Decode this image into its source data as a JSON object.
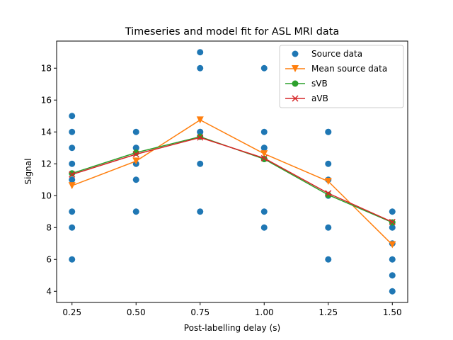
{
  "chart_data": {
    "type": "line",
    "title": "Timeseries and model fit for ASL MRI data",
    "xlabel": "Post-labelling delay (s)",
    "ylabel": "Signal",
    "xlim": [
      0.19,
      1.56
    ],
    "ylim": [
      3.3,
      19.7
    ],
    "xticks": [
      0.25,
      0.5,
      0.75,
      1.0,
      1.25,
      1.5
    ],
    "xtick_labels": [
      "0.25",
      "0.50",
      "0.75",
      "1.00",
      "1.25",
      "1.50"
    ],
    "yticks": [
      4,
      6,
      8,
      10,
      12,
      14,
      16,
      18
    ],
    "ytick_labels": [
      "4",
      "6",
      "8",
      "10",
      "12",
      "14",
      "16",
      "18"
    ],
    "grid": false,
    "legend_position": "top-right",
    "scatter": {
      "name": "Source data",
      "color": "#1f77b4",
      "points": [
        [
          0.25,
          15
        ],
        [
          0.25,
          14
        ],
        [
          0.25,
          13
        ],
        [
          0.25,
          12
        ],
        [
          0.25,
          11
        ],
        [
          0.25,
          9
        ],
        [
          0.25,
          8
        ],
        [
          0.25,
          6
        ],
        [
          0.5,
          14
        ],
        [
          0.5,
          13
        ],
        [
          0.5,
          13
        ],
        [
          0.5,
          12
        ],
        [
          0.5,
          11
        ],
        [
          0.5,
          9
        ],
        [
          0.75,
          19
        ],
        [
          0.75,
          18
        ],
        [
          0.75,
          14
        ],
        [
          0.75,
          14
        ],
        [
          0.75,
          12
        ],
        [
          0.75,
          9
        ],
        [
          1.0,
          18
        ],
        [
          1.0,
          14
        ],
        [
          1.0,
          13
        ],
        [
          1.0,
          13
        ],
        [
          1.0,
          12.3
        ],
        [
          1.0,
          9
        ],
        [
          1.0,
          8
        ],
        [
          1.25,
          14
        ],
        [
          1.25,
          14
        ],
        [
          1.25,
          12
        ],
        [
          1.25,
          11
        ],
        [
          1.25,
          10
        ],
        [
          1.25,
          8
        ],
        [
          1.25,
          6
        ],
        [
          1.5,
          9
        ],
        [
          1.5,
          8
        ],
        [
          1.5,
          7
        ],
        [
          1.5,
          6
        ],
        [
          1.5,
          5
        ],
        [
          1.5,
          4
        ]
      ]
    },
    "series": [
      {
        "name": "Mean source data",
        "color": "#ff7f0e",
        "marker": "triangle-down",
        "x": [
          0.25,
          0.5,
          0.75,
          1.0,
          1.25,
          1.5
        ],
        "values": [
          10.63,
          12.17,
          14.75,
          12.63,
          10.9,
          6.92
        ]
      },
      {
        "name": "sVB",
        "color": "#2ca02c",
        "marker": "circle",
        "x": [
          0.25,
          0.5,
          0.75,
          1.0,
          1.25,
          1.5
        ],
        "values": [
          11.4,
          12.7,
          13.7,
          12.3,
          10.05,
          8.32
        ]
      },
      {
        "name": "aVB",
        "color": "#d62728",
        "marker": "x",
        "x": [
          0.25,
          0.5,
          0.75,
          1.0,
          1.25,
          1.5
        ],
        "values": [
          11.33,
          12.6,
          13.65,
          12.35,
          10.15,
          8.35
        ]
      }
    ]
  }
}
